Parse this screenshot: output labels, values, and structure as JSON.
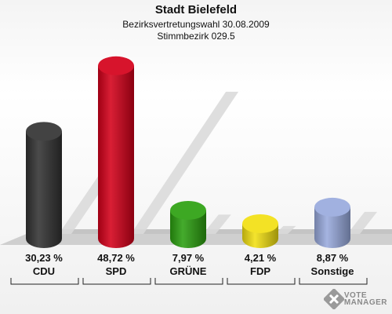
{
  "header": {
    "title": "Stadt Bielefeld",
    "subtitle": "Bezirksvertretungswahl 30.08.2009",
    "subtitle2": "Stimmbezirk 029.5"
  },
  "chart_data": {
    "type": "bar",
    "title": "Stadt Bielefeld",
    "subtitle": "Bezirksvertretungswahl 30.08.2009 — Stimmbezirk 029.5",
    "categories": [
      "CDU",
      "SPD",
      "GRÜNE",
      "FDP",
      "Sonstige"
    ],
    "values": [
      30.23,
      48.72,
      7.97,
      4.21,
      8.87
    ],
    "value_labels": [
      "30,23 %",
      "48,72 %",
      "7,97 %",
      "4,21 %",
      "8,87 %"
    ],
    "colors": [
      "#333333",
      "#d4001a",
      "#2ca010",
      "#f2e012",
      "#99aadd"
    ],
    "ylim": [
      0,
      50
    ],
    "grid": false,
    "legend": "none"
  },
  "logo": {
    "line1": "VOTE",
    "line2": "MANAGER",
    "icon": "ballot-x-icon"
  }
}
